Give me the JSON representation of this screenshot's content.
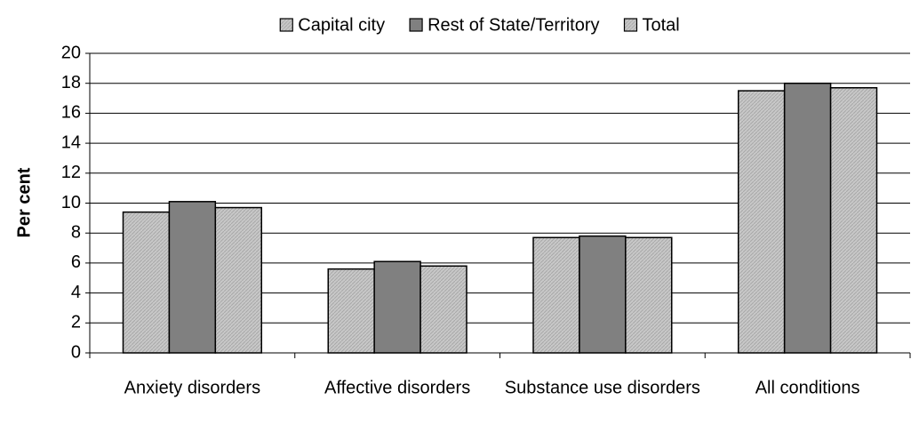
{
  "chart_data": {
    "type": "bar",
    "y_label": "Per cent",
    "categories": [
      "Anxiety disorders",
      "Affective disorders",
      "Substance use disorders",
      "All conditions"
    ],
    "series": [
      {
        "name": "Capital city",
        "color": "#c8c8c8",
        "values": [
          9.4,
          5.6,
          7.7,
          17.5
        ]
      },
      {
        "name": "Rest of State/Territory",
        "color": "#808080",
        "values": [
          10.1,
          6.1,
          7.8,
          18.0
        ]
      },
      {
        "name": "Total",
        "color": "#c8c8c8",
        "values": [
          9.7,
          5.8,
          7.7,
          17.7
        ]
      }
    ],
    "ylim": [
      0,
      20
    ],
    "yticks": [
      0,
      2,
      4,
      6,
      8,
      10,
      12,
      14,
      16,
      18,
      20
    ],
    "grid": true,
    "legend": "top"
  }
}
